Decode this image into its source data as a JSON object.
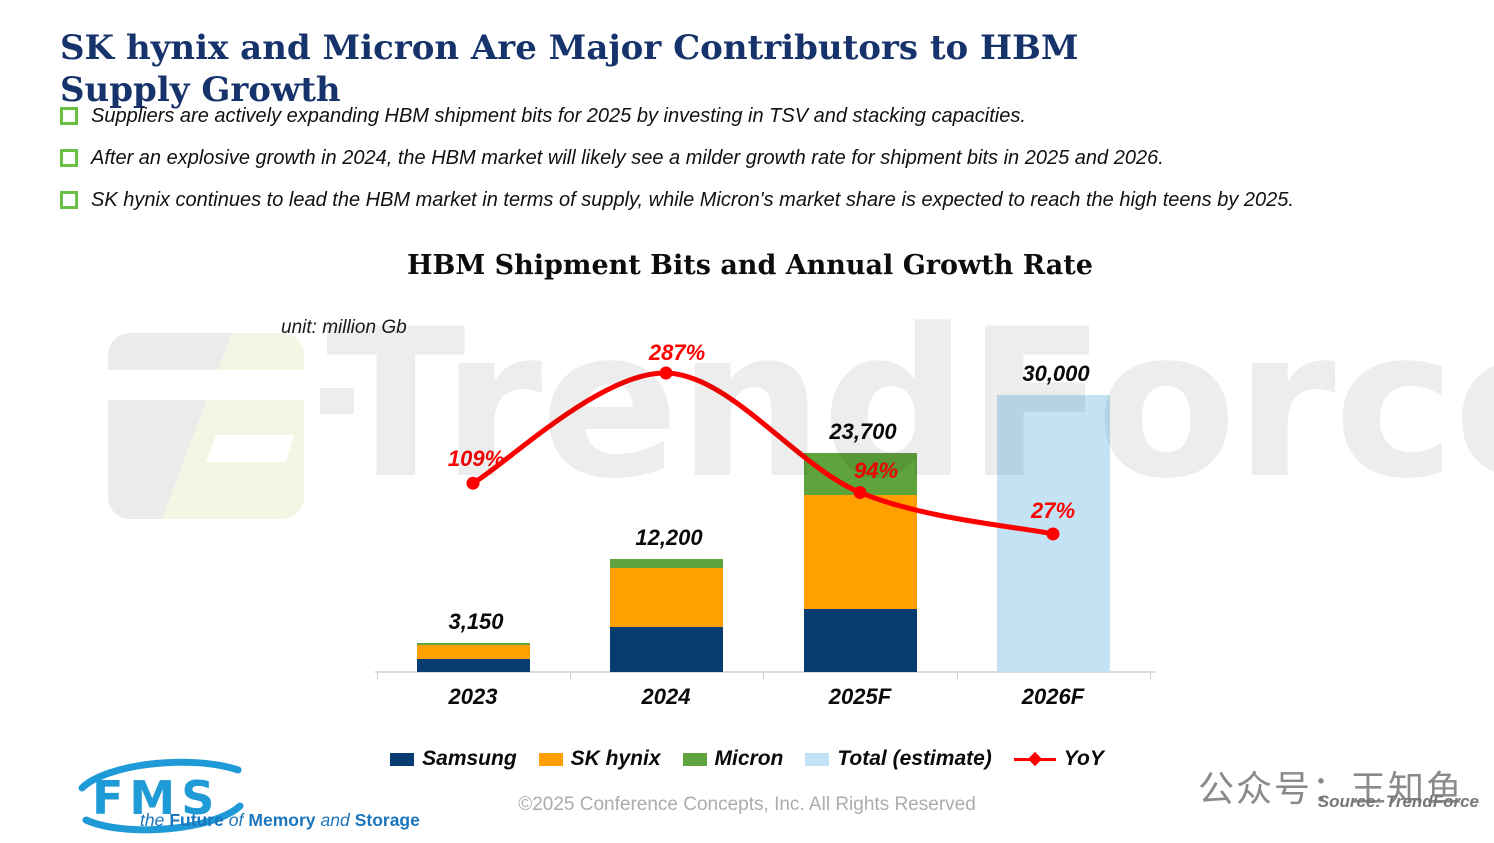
{
  "title": "SK hynix and Micron Are Major Contributors to HBM Supply Growth",
  "bullets": [
    "Suppliers are actively expanding HBM shipment bits for 2025 by investing in TSV and stacking capacities.",
    "After an explosive growth in 2024, the HBM market will likely see a milder growth rate for shipment bits in 2025 and 2026.",
    "SK hynix continues to lead the HBM market in terms of supply, while Micron's market share is expected to reach the high teens by 2025."
  ],
  "chart": {
    "title": "HBM Shipment Bits and Annual Growth Rate",
    "unit_label": "unit: million Gb"
  },
  "chart_data": {
    "type": "bar",
    "subtype": "stacked-bars-with-line",
    "title": "HBM Shipment Bits and Annual Growth Rate",
    "unit": "million Gb",
    "categories": [
      "2023",
      "2024",
      "2025F",
      "2026F"
    ],
    "series": [
      {
        "name": "Samsung",
        "color": "#063c6f",
        "values": [
          1450,
          4900,
          6800,
          null
        ]
      },
      {
        "name": "SK hynix",
        "color": "#ffa000",
        "values": [
          1500,
          6400,
          12350,
          null
        ]
      },
      {
        "name": "Micron",
        "color": "#5fa33c",
        "values": [
          200,
          900,
          4550,
          null
        ]
      },
      {
        "name": "Total (estimate)",
        "color": "#c3e3f5",
        "values": [
          null,
          null,
          null,
          30000
        ]
      }
    ],
    "totals": [
      3150,
      12200,
      23700,
      30000
    ],
    "total_labels": [
      "3,150",
      "12,200",
      "23,700",
      "30,000"
    ],
    "yoy": {
      "name": "YoY",
      "color": "#ff0000",
      "values": [
        109,
        287,
        94,
        27
      ],
      "labels": [
        "109%",
        "287%",
        "94%",
        "27%"
      ]
    },
    "value_axis": {
      "min": 0,
      "max": 33800,
      "gridlines": false
    },
    "yoy_axis": {
      "min": -196,
      "max": 308
    },
    "legend_position": "bottom",
    "xlabel": "",
    "ylabel": ""
  },
  "watermark": {
    "text": "TrendForce"
  },
  "footer": {
    "copyright": "©2025 Conference Concepts, Inc. All Rights Reserved",
    "wechat": "公众号：王知鱼",
    "source": "Source: TrendForce",
    "fms": {
      "logo_text": "FMS",
      "tagline_parts": [
        "the",
        "Future",
        "of",
        "Memory",
        "and",
        "Storage"
      ]
    }
  }
}
